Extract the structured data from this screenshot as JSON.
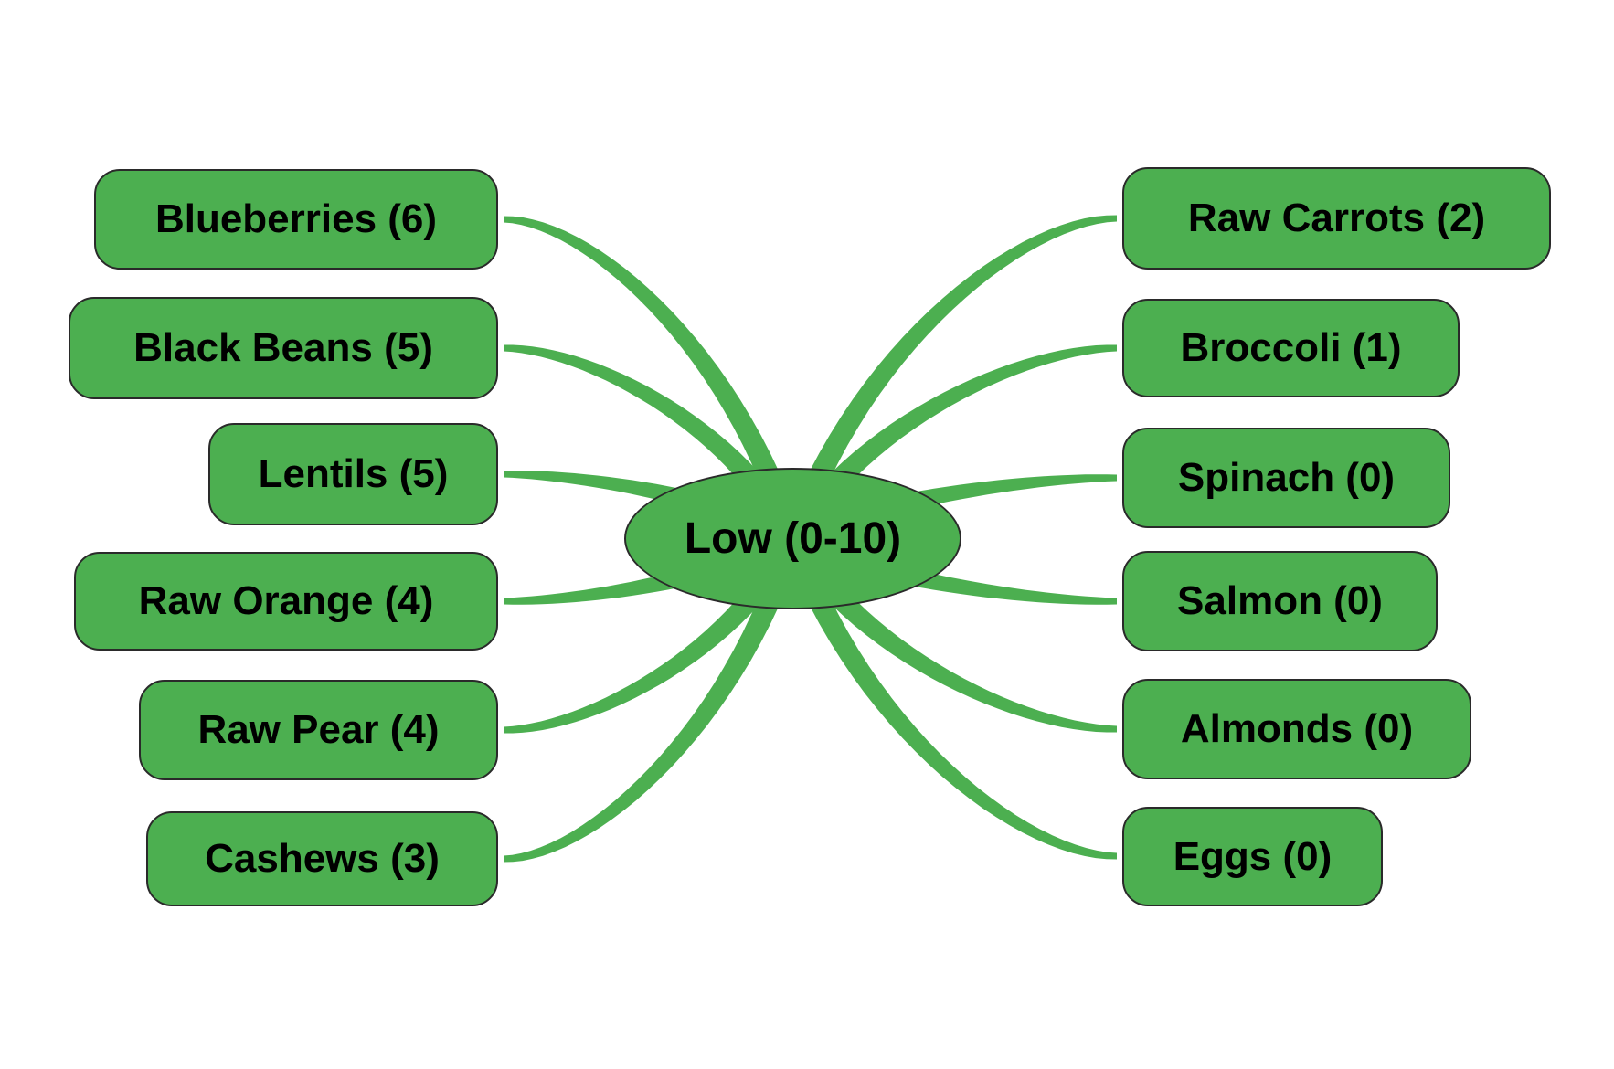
{
  "diagram": {
    "type": "mindmap",
    "center": {
      "label": "Low (0-10)",
      "name": "Low",
      "range": "0-10"
    },
    "left_nodes": [
      {
        "label": "Blueberries (6)",
        "name": "Blueberries",
        "value": 6
      },
      {
        "label": "Black Beans (5)",
        "name": "Black Beans",
        "value": 5
      },
      {
        "label": "Lentils (5)",
        "name": "Lentils",
        "value": 5
      },
      {
        "label": "Raw Orange (4)",
        "name": "Raw Orange",
        "value": 4
      },
      {
        "label": "Raw Pear (4)",
        "name": "Raw Pear",
        "value": 4
      },
      {
        "label": "Cashews (3)",
        "name": "Cashews",
        "value": 3
      }
    ],
    "right_nodes": [
      {
        "label": "Raw Carrots (2)",
        "name": "Raw Carrots",
        "value": 2
      },
      {
        "label": "Broccoli (1)",
        "name": "Broccoli",
        "value": 1
      },
      {
        "label": "Spinach (0)",
        "name": "Spinach",
        "value": 0
      },
      {
        "label": "Salmon (0)",
        "name": "Salmon",
        "value": 0
      },
      {
        "label": "Almonds (0)",
        "name": "Almonds",
        "value": 0
      },
      {
        "label": "Eggs (0)",
        "name": "Eggs",
        "value": 0
      }
    ],
    "colors": {
      "node_fill": "#4caf50",
      "edge": "#4caf50",
      "node_border": "#2a2a2a",
      "text": "#000000",
      "background": "#ffffff"
    }
  }
}
